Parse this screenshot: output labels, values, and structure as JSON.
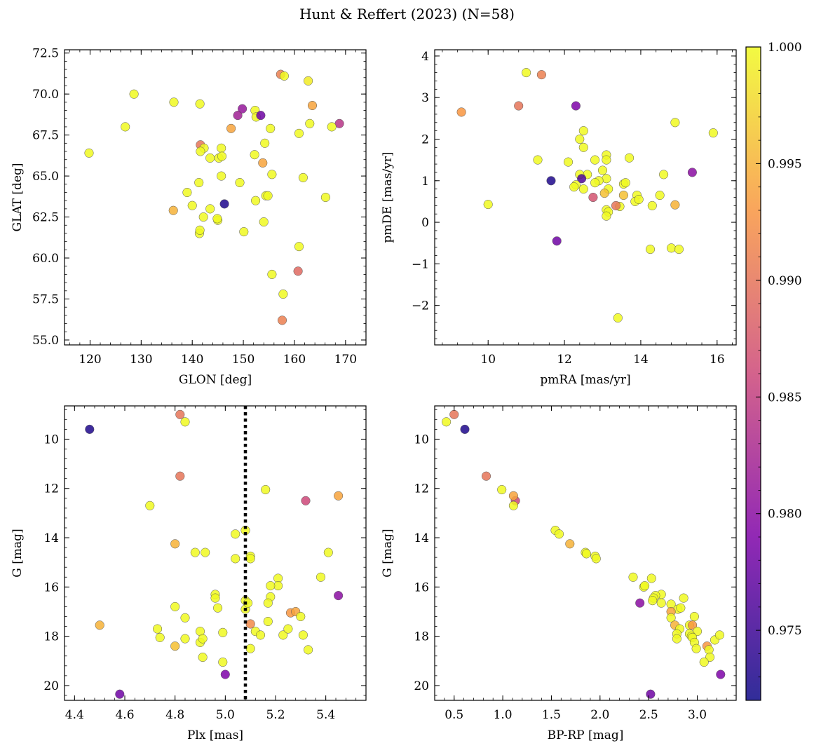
{
  "figure": {
    "suptitle": "Hunt & Reffert (2023) (N=58)",
    "colorbar": {
      "ticks": [
        "0.975",
        "0.980",
        "0.985",
        "0.990",
        "0.995",
        "1.000"
      ],
      "range": [
        0.972,
        1.0
      ],
      "colormap": "plasma"
    }
  },
  "chart_data": [
    {
      "type": "scatter",
      "id": "glon-glat",
      "xlabel": "GLON [deg]",
      "ylabel": "GLAT [deg]",
      "xlim": [
        115,
        174
      ],
      "ylim": [
        54.7,
        72.7
      ],
      "xticks": [
        120,
        130,
        140,
        150,
        160,
        170
      ],
      "xtick_labels": [
        "120",
        "130",
        "140",
        "150",
        "160",
        "170"
      ],
      "yticks": [
        55,
        57.5,
        60,
        62.5,
        65,
        67.5,
        70,
        72.5
      ],
      "ytick_labels": [
        "55.0",
        "57.5",
        "60.0",
        "62.5",
        "65.0",
        "67.5",
        "70.0",
        "72.5"
      ],
      "invert_y": false,
      "vline": null,
      "points": [
        [
          119.8,
          66.4,
          1.0
        ],
        [
          126.9,
          68.0,
          1.0
        ],
        [
          128.6,
          70.0,
          1.0
        ],
        [
          136.4,
          69.5,
          1.0
        ],
        [
          141.5,
          69.4,
          1.0
        ],
        [
          157.3,
          71.2,
          0.991
        ],
        [
          158.0,
          71.1,
          1.0
        ],
        [
          162.7,
          70.8,
          0.999
        ],
        [
          163.5,
          69.3,
          0.994
        ],
        [
          149.8,
          69.1,
          0.981
        ],
        [
          148.9,
          68.7,
          0.982
        ],
        [
          152.3,
          69.0,
          1.0
        ],
        [
          152.5,
          68.6,
          1.0
        ],
        [
          153.4,
          68.7,
          0.978
        ],
        [
          168.8,
          68.2,
          0.984
        ],
        [
          155.3,
          67.9,
          1.0
        ],
        [
          147.6,
          67.9,
          0.994
        ],
        [
          160.9,
          67.6,
          1.0
        ],
        [
          163.0,
          68.2,
          1.0
        ],
        [
          167.3,
          68.0,
          1.0
        ],
        [
          141.6,
          66.9,
          0.99
        ],
        [
          142.3,
          66.7,
          1.0
        ],
        [
          141.6,
          66.5,
          1.0
        ],
        [
          145.7,
          66.7,
          1.0
        ],
        [
          154.2,
          67.0,
          1.0
        ],
        [
          152.2,
          66.3,
          1.0
        ],
        [
          143.5,
          66.1,
          1.0
        ],
        [
          145.2,
          66.1,
          1.0
        ],
        [
          145.8,
          66.2,
          1.0
        ],
        [
          153.8,
          65.8,
          0.994
        ],
        [
          145.7,
          65.0,
          1.0
        ],
        [
          155.6,
          65.1,
          1.0
        ],
        [
          161.7,
          64.9,
          1.0
        ],
        [
          141.3,
          64.6,
          1.0
        ],
        [
          149.3,
          64.6,
          1.0
        ],
        [
          139.0,
          64.0,
          1.0
        ],
        [
          154.4,
          63.8,
          1.0
        ],
        [
          154.8,
          63.8,
          1.0
        ],
        [
          166.1,
          63.7,
          1.0
        ],
        [
          140.0,
          63.2,
          1.0
        ],
        [
          146.3,
          63.3,
          0.973
        ],
        [
          152.4,
          63.5,
          1.0
        ],
        [
          136.3,
          62.9,
          0.995
        ],
        [
          143.5,
          63.0,
          1.0
        ],
        [
          142.2,
          62.5,
          1.0
        ],
        [
          145.0,
          62.3,
          1.0
        ],
        [
          144.9,
          62.4,
          1.0
        ],
        [
          154.0,
          62.2,
          1.0
        ],
        [
          141.4,
          61.5,
          1.0
        ],
        [
          141.5,
          61.7,
          1.0
        ],
        [
          150.1,
          61.6,
          1.0
        ],
        [
          160.9,
          60.7,
          1.0
        ],
        [
          160.7,
          59.2,
          0.989
        ],
        [
          155.6,
          59.0,
          1.0
        ],
        [
          157.8,
          57.8,
          1.0
        ],
        [
          157.6,
          56.2,
          0.991
        ]
      ]
    },
    {
      "type": "scatter",
      "id": "pmra-pmde",
      "xlabel": "pmRA [mas/yr]",
      "ylabel": "pmDE [mas/yr]",
      "xlim": [
        8.6,
        16.5
      ],
      "ylim": [
        -2.95,
        4.15
      ],
      "xticks": [
        10,
        12,
        14,
        16
      ],
      "xtick_labels": [
        "10",
        "12",
        "14",
        "16"
      ],
      "yticks": [
        -2,
        -1,
        0,
        1,
        2,
        3,
        4
      ],
      "ytick_labels": [
        "−2",
        "−1",
        "0",
        "1",
        "2",
        "3",
        "4"
      ],
      "invert_y": false,
      "vline": null,
      "points": [
        [
          11.0,
          3.6,
          1.0
        ],
        [
          11.4,
          3.55,
          0.991
        ],
        [
          9.3,
          2.65,
          0.993
        ],
        [
          10.8,
          2.8,
          0.99
        ],
        [
          12.3,
          2.8,
          0.979
        ],
        [
          14.9,
          2.4,
          1.0
        ],
        [
          15.9,
          2.15,
          1.0
        ],
        [
          12.5,
          2.2,
          1.0
        ],
        [
          12.4,
          2.0,
          1.0
        ],
        [
          12.5,
          1.8,
          1.0
        ],
        [
          11.3,
          1.5,
          1.0
        ],
        [
          12.8,
          1.5,
          1.0
        ],
        [
          13.1,
          1.62,
          1.0
        ],
        [
          13.1,
          1.5,
          1.0
        ],
        [
          13.7,
          1.55,
          1.0
        ],
        [
          12.1,
          1.45,
          1.0
        ],
        [
          13.0,
          1.25,
          1.0
        ],
        [
          12.6,
          1.15,
          1.0
        ],
        [
          12.4,
          1.15,
          1.0
        ],
        [
          12.45,
          1.05,
          0.976
        ],
        [
          11.65,
          1.0,
          0.973
        ],
        [
          15.35,
          1.2,
          0.98
        ],
        [
          14.6,
          1.15,
          1.0
        ],
        [
          13.1,
          1.05,
          1.0
        ],
        [
          12.9,
          1.0,
          1.0
        ],
        [
          12.8,
          0.95,
          1.0
        ],
        [
          12.3,
          0.9,
          1.0
        ],
        [
          12.25,
          0.85,
          1.0
        ],
        [
          12.5,
          0.8,
          1.0
        ],
        [
          13.15,
          0.8,
          1.0
        ],
        [
          13.55,
          0.92,
          1.0
        ],
        [
          13.6,
          0.95,
          1.0
        ],
        [
          10.0,
          0.43,
          1.0
        ],
        [
          12.75,
          0.6,
          0.987
        ],
        [
          13.05,
          0.7,
          0.996
        ],
        [
          13.55,
          0.65,
          0.996
        ],
        [
          13.9,
          0.65,
          1.0
        ],
        [
          14.5,
          0.65,
          1.0
        ],
        [
          13.85,
          0.5,
          1.0
        ],
        [
          13.95,
          0.55,
          1.0
        ],
        [
          14.9,
          0.42,
          0.995
        ],
        [
          14.3,
          0.4,
          1.0
        ],
        [
          13.45,
          0.38,
          1.0
        ],
        [
          13.35,
          0.4,
          0.99
        ],
        [
          13.1,
          0.3,
          1.0
        ],
        [
          13.15,
          0.25,
          1.0
        ],
        [
          13.1,
          0.15,
          1.0
        ],
        [
          11.8,
          -0.45,
          0.978
        ],
        [
          14.25,
          -0.65,
          1.0
        ],
        [
          14.8,
          -0.62,
          1.0
        ],
        [
          15.0,
          -0.65,
          1.0
        ],
        [
          13.4,
          -2.3,
          1.0
        ]
      ]
    },
    {
      "type": "scatter",
      "id": "plx-g",
      "xlabel": "Plx [mas]",
      "ylabel": "G [mag]",
      "xlim": [
        4.36,
        5.56
      ],
      "ylim": [
        8.65,
        20.6
      ],
      "xticks": [
        4.4,
        4.6,
        4.8,
        5.0,
        5.2,
        5.4
      ],
      "xtick_labels": [
        "4.4",
        "4.6",
        "4.8",
        "5.0",
        "5.2",
        "5.4"
      ],
      "yticks": [
        10,
        12,
        14,
        16,
        18,
        20
      ],
      "ytick_labels": [
        "10",
        "12",
        "14",
        "16",
        "18",
        "20"
      ],
      "invert_y": true,
      "vline": 5.08,
      "points": [
        [
          4.82,
          9.0,
          0.99
        ],
        [
          4.84,
          9.3,
          1.0
        ],
        [
          4.46,
          9.6,
          0.973
        ],
        [
          4.82,
          11.5,
          0.99
        ],
        [
          4.7,
          12.7,
          1.0
        ],
        [
          5.32,
          12.5,
          0.986
        ],
        [
          5.45,
          12.3,
          0.994
        ],
        [
          5.16,
          12.05,
          1.0
        ],
        [
          4.8,
          14.25,
          0.995
        ],
        [
          4.88,
          14.6,
          1.0
        ],
        [
          4.92,
          14.6,
          1.0
        ],
        [
          5.04,
          13.85,
          1.0
        ],
        [
          5.08,
          13.7,
          1.0
        ],
        [
          5.04,
          14.85,
          1.0
        ],
        [
          5.1,
          14.75,
          1.0
        ],
        [
          5.1,
          14.85,
          1.0
        ],
        [
          5.41,
          14.6,
          1.0
        ],
        [
          5.38,
          15.6,
          1.0
        ],
        [
          5.45,
          16.35,
          0.98
        ],
        [
          5.21,
          15.65,
          1.0
        ],
        [
          5.21,
          15.95,
          1.0
        ],
        [
          5.18,
          15.95,
          1.0
        ],
        [
          5.18,
          16.4,
          1.0
        ],
        [
          4.96,
          16.3,
          1.0
        ],
        [
          4.96,
          16.45,
          1.0
        ],
        [
          4.97,
          16.85,
          1.0
        ],
        [
          5.08,
          16.55,
          1.0
        ],
        [
          5.08,
          16.9,
          1.0
        ],
        [
          5.09,
          16.65,
          1.0
        ],
        [
          5.17,
          16.65,
          1.0
        ],
        [
          4.8,
          16.8,
          1.0
        ],
        [
          4.5,
          17.55,
          0.995
        ],
        [
          4.73,
          17.7,
          1.0
        ],
        [
          4.74,
          18.05,
          1.0
        ],
        [
          4.84,
          17.25,
          1.0
        ],
        [
          4.84,
          18.1,
          1.0
        ],
        [
          4.8,
          18.4,
          0.996
        ],
        [
          4.9,
          17.8,
          1.0
        ],
        [
          4.9,
          18.25,
          1.0
        ],
        [
          4.91,
          18.1,
          1.0
        ],
        [
          4.99,
          17.85,
          1.0
        ],
        [
          4.91,
          18.85,
          1.0
        ],
        [
          4.99,
          19.05,
          1.0
        ],
        [
          5.1,
          17.5,
          0.992
        ],
        [
          5.12,
          17.8,
          1.0
        ],
        [
          5.14,
          17.95,
          1.0
        ],
        [
          5.17,
          17.4,
          1.0
        ],
        [
          5.1,
          18.5,
          1.0
        ],
        [
          5.23,
          17.95,
          1.0
        ],
        [
          5.25,
          17.7,
          1.0
        ],
        [
          5.26,
          17.05,
          0.993
        ],
        [
          5.28,
          17.0,
          0.994
        ],
        [
          5.3,
          17.2,
          1.0
        ],
        [
          5.31,
          17.95,
          1.0
        ],
        [
          5.33,
          18.55,
          1.0
        ],
        [
          5.0,
          19.55,
          0.979
        ],
        [
          4.58,
          20.35,
          0.978
        ]
      ]
    },
    {
      "type": "scatter",
      "id": "bprp-g",
      "xlabel": "BP-RP [mag]",
      "ylabel": "G [mag]",
      "xlim": [
        0.3,
        3.4
      ],
      "ylim": [
        8.65,
        20.6
      ],
      "xticks": [
        0.5,
        1.0,
        1.5,
        2.0,
        2.5,
        3.0
      ],
      "xtick_labels": [
        "0.5",
        "1.0",
        "1.5",
        "2.0",
        "2.5",
        "3.0"
      ],
      "yticks": [
        10,
        12,
        14,
        16,
        18,
        20
      ],
      "ytick_labels": [
        "10",
        "12",
        "14",
        "16",
        "18",
        "20"
      ],
      "invert_y": true,
      "vline": null,
      "points": [
        [
          0.42,
          9.3,
          1.0
        ],
        [
          0.5,
          9.0,
          0.99
        ],
        [
          0.61,
          9.6,
          0.973
        ],
        [
          0.83,
          11.5,
          0.99
        ],
        [
          0.99,
          12.05,
          1.0
        ],
        [
          1.13,
          12.5,
          0.986
        ],
        [
          1.11,
          12.3,
          0.994
        ],
        [
          1.11,
          12.7,
          1.0
        ],
        [
          1.54,
          13.7,
          1.0
        ],
        [
          1.58,
          13.85,
          1.0
        ],
        [
          1.69,
          14.25,
          0.995
        ],
        [
          1.85,
          14.6,
          1.0
        ],
        [
          1.86,
          14.65,
          1.0
        ],
        [
          1.95,
          14.75,
          1.0
        ],
        [
          1.96,
          14.85,
          1.0
        ],
        [
          2.34,
          15.6,
          1.0
        ],
        [
          2.53,
          15.65,
          1.0
        ],
        [
          2.45,
          16.0,
          1.0
        ],
        [
          2.46,
          15.95,
          1.0
        ],
        [
          2.63,
          16.3,
          1.0
        ],
        [
          2.57,
          16.35,
          1.0
        ],
        [
          2.55,
          16.45,
          1.0
        ],
        [
          2.54,
          16.55,
          1.0
        ],
        [
          2.41,
          16.65,
          0.98
        ],
        [
          2.63,
          16.65,
          1.0
        ],
        [
          2.73,
          16.7,
          1.0
        ],
        [
          2.8,
          16.9,
          1.0
        ],
        [
          2.83,
          16.85,
          1.0
        ],
        [
          2.86,
          16.45,
          1.0
        ],
        [
          2.73,
          17.0,
          0.994
        ],
        [
          2.73,
          17.25,
          1.0
        ],
        [
          2.77,
          17.55,
          0.995
        ],
        [
          2.82,
          17.7,
          1.0
        ],
        [
          2.92,
          17.55,
          1.0
        ],
        [
          2.95,
          17.55,
          0.993
        ],
        [
          2.97,
          17.2,
          1.0
        ],
        [
          3.0,
          17.8,
          1.0
        ],
        [
          2.79,
          17.9,
          1.0
        ],
        [
          2.79,
          18.1,
          1.0
        ],
        [
          2.92,
          17.9,
          1.0
        ],
        [
          2.94,
          18.0,
          1.0
        ],
        [
          2.95,
          18.05,
          1.0
        ],
        [
          2.97,
          18.25,
          1.0
        ],
        [
          2.99,
          18.5,
          1.0
        ],
        [
          3.1,
          18.4,
          0.993
        ],
        [
          3.12,
          18.55,
          1.0
        ],
        [
          3.13,
          18.85,
          1.0
        ],
        [
          3.18,
          18.15,
          1.0
        ],
        [
          3.23,
          17.95,
          1.0
        ],
        [
          3.07,
          19.05,
          1.0
        ],
        [
          3.24,
          19.55,
          0.979
        ],
        [
          2.52,
          20.35,
          0.978
        ]
      ]
    }
  ]
}
